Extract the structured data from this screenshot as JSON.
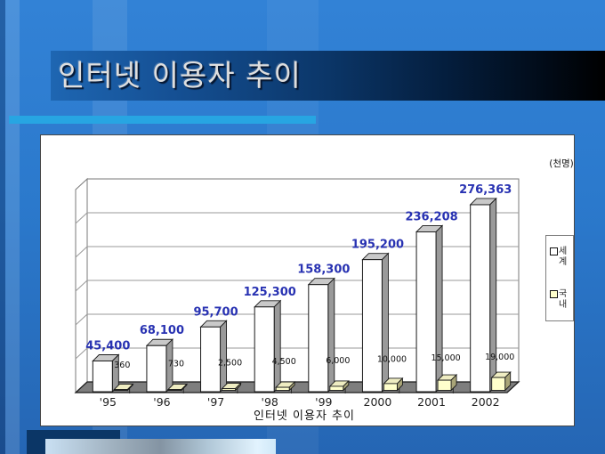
{
  "slide": {
    "title": "인터넷 이용자 추이",
    "accent_color": "#27A5E2"
  },
  "chart": {
    "unit_label": "(천명)",
    "axis_title": "인터넷 이용자 추이"
  },
  "chart_data": {
    "type": "bar",
    "title": "인터넷 이용자 추이",
    "unit": "천명",
    "categories": [
      "'95",
      "'96",
      "'97",
      "'98",
      "'99",
      "2000",
      "2001",
      "2002"
    ],
    "series": [
      {
        "name": "세계",
        "values": [
          45400,
          68100,
          95700,
          125300,
          158300,
          195200,
          236208,
          276363
        ],
        "labels": [
          "45,400",
          "68,100",
          "95,700",
          "125,300",
          "158,300",
          "195,200",
          "236,208",
          "276,363"
        ],
        "color": "#FFFFFF",
        "label_color": "#2832B2"
      },
      {
        "name": "국내",
        "values": [
          360,
          730,
          2500,
          4500,
          6000,
          10000,
          15000,
          19000
        ],
        "labels": [
          "360",
          "730",
          "2,500",
          "4,500",
          "6,000",
          "10,000",
          "15,000",
          "19,000"
        ],
        "color": "#FFFFCC",
        "label_color": "#111111"
      }
    ],
    "ylim": [
      0,
      300000
    ],
    "gridline_divisions": 6,
    "grid": true,
    "legend_position": "right",
    "style": "3d-column"
  }
}
